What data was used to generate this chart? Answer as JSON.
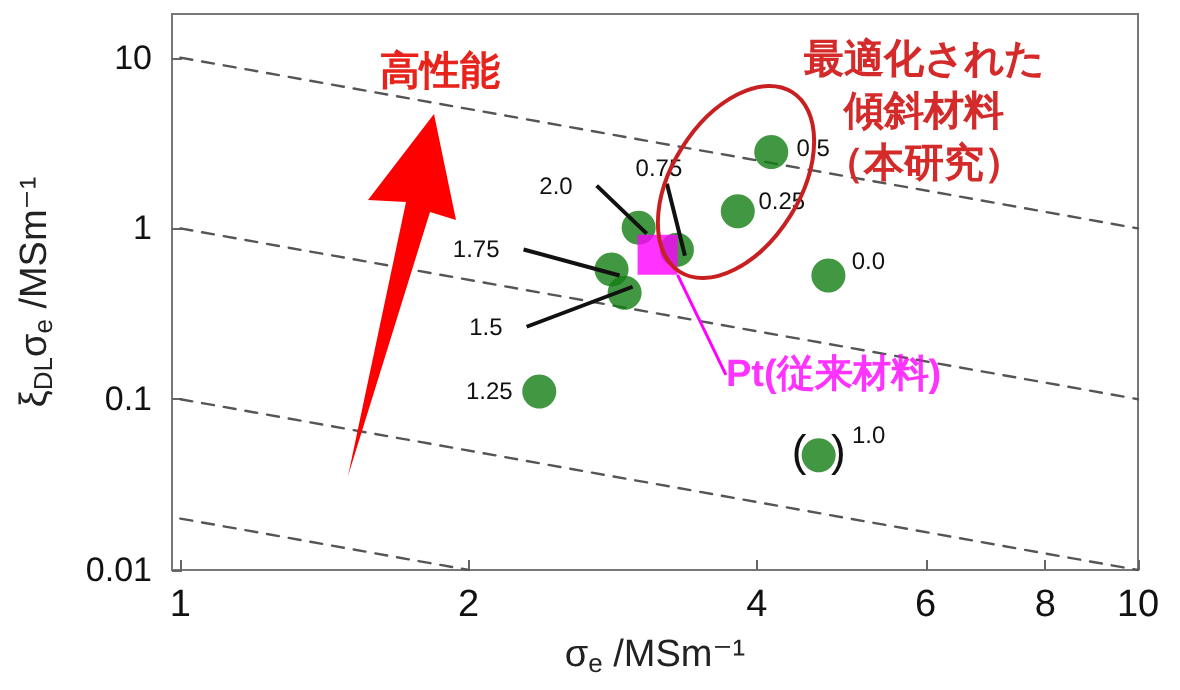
{
  "chart_data": {
    "type": "scatter",
    "xlabel": "σ$_{e}$ /MSm⁻¹",
    "ylabel": "ξ$_{DL}$σ$_{e}$ /MSm⁻¹",
    "log": "xy",
    "xlim": [
      0.98,
      10
    ],
    "ylim": [
      0.01,
      18
    ],
    "xticks": [
      1,
      2,
      4,
      6,
      8,
      10
    ],
    "yticks": [
      0.01,
      0.1,
      1,
      10
    ],
    "grid": false,
    "legend": false,
    "series": [
      {
        "color": "#137d13",
        "marker": "circle",
        "x": [
          4.75,
          3.82,
          4.14,
          3.3,
          4.64,
          2.37,
          2.91,
          2.82,
          3.01
        ],
        "values": [
          0.53,
          1.26,
          2.8,
          0.75,
          0.047,
          0.111,
          0.42,
          0.575,
          1.01
        ]
      },
      {
        "type": "scatter",
        "name": "Pt(従来材料)",
        "color": "#ff00ff",
        "marker": "square",
        "x": [
          3.15
        ],
        "values": [
          0.7
        ]
      },
      {
        "type": "line",
        "color": "#555555",
        "line_style": "dashed",
        "marker": "none",
        "x": [
          1,
          10
        ],
        "values": [
          10,
          1
        ]
      },
      {
        "type": "line",
        "color": "#555555",
        "line_style": "dashed",
        "marker": "none",
        "x": [
          1,
          10
        ],
        "values": [
          1,
          0.1
        ]
      },
      {
        "type": "line",
        "color": "#555555",
        "line_style": "dashed",
        "marker": "none",
        "x": [
          1,
          10
        ],
        "values": [
          0.1,
          0.01
        ]
      },
      {
        "type": "line",
        "color": "#555555",
        "line_style": "dashed",
        "marker": "none",
        "x": [
          1,
          2
        ],
        "values": [
          0.02,
          0.01
        ]
      }
    ],
    "annotations": [
      "高性能",
      "最適化された",
      "傾斜材料",
      "（本研究）",
      {
        "text": "(  )",
        "x": 4.64,
        "y": 0.047
      },
      {
        "text": "0.0",
        "x": 4.75,
        "y": 0.53
      },
      {
        "text": "0.25",
        "x": 3.82,
        "y": 1.26
      },
      {
        "text": "0.5",
        "x": 4.14,
        "y": 2.8
      },
      {
        "text": "0.75",
        "x": 3.3,
        "y": 0.75
      },
      {
        "text": "1.0",
        "x": 4.64,
        "y": 0.047
      },
      {
        "text": "1.25",
        "x": 2.37,
        "y": 0.111
      },
      {
        "text": "1.5",
        "x": 2.91,
        "y": 0.42
      },
      {
        "text": "1.75",
        "x": 2.82,
        "y": 0.575
      },
      {
        "text": "2.0",
        "x": 3.01,
        "y": 1.01
      }
    ]
  }
}
